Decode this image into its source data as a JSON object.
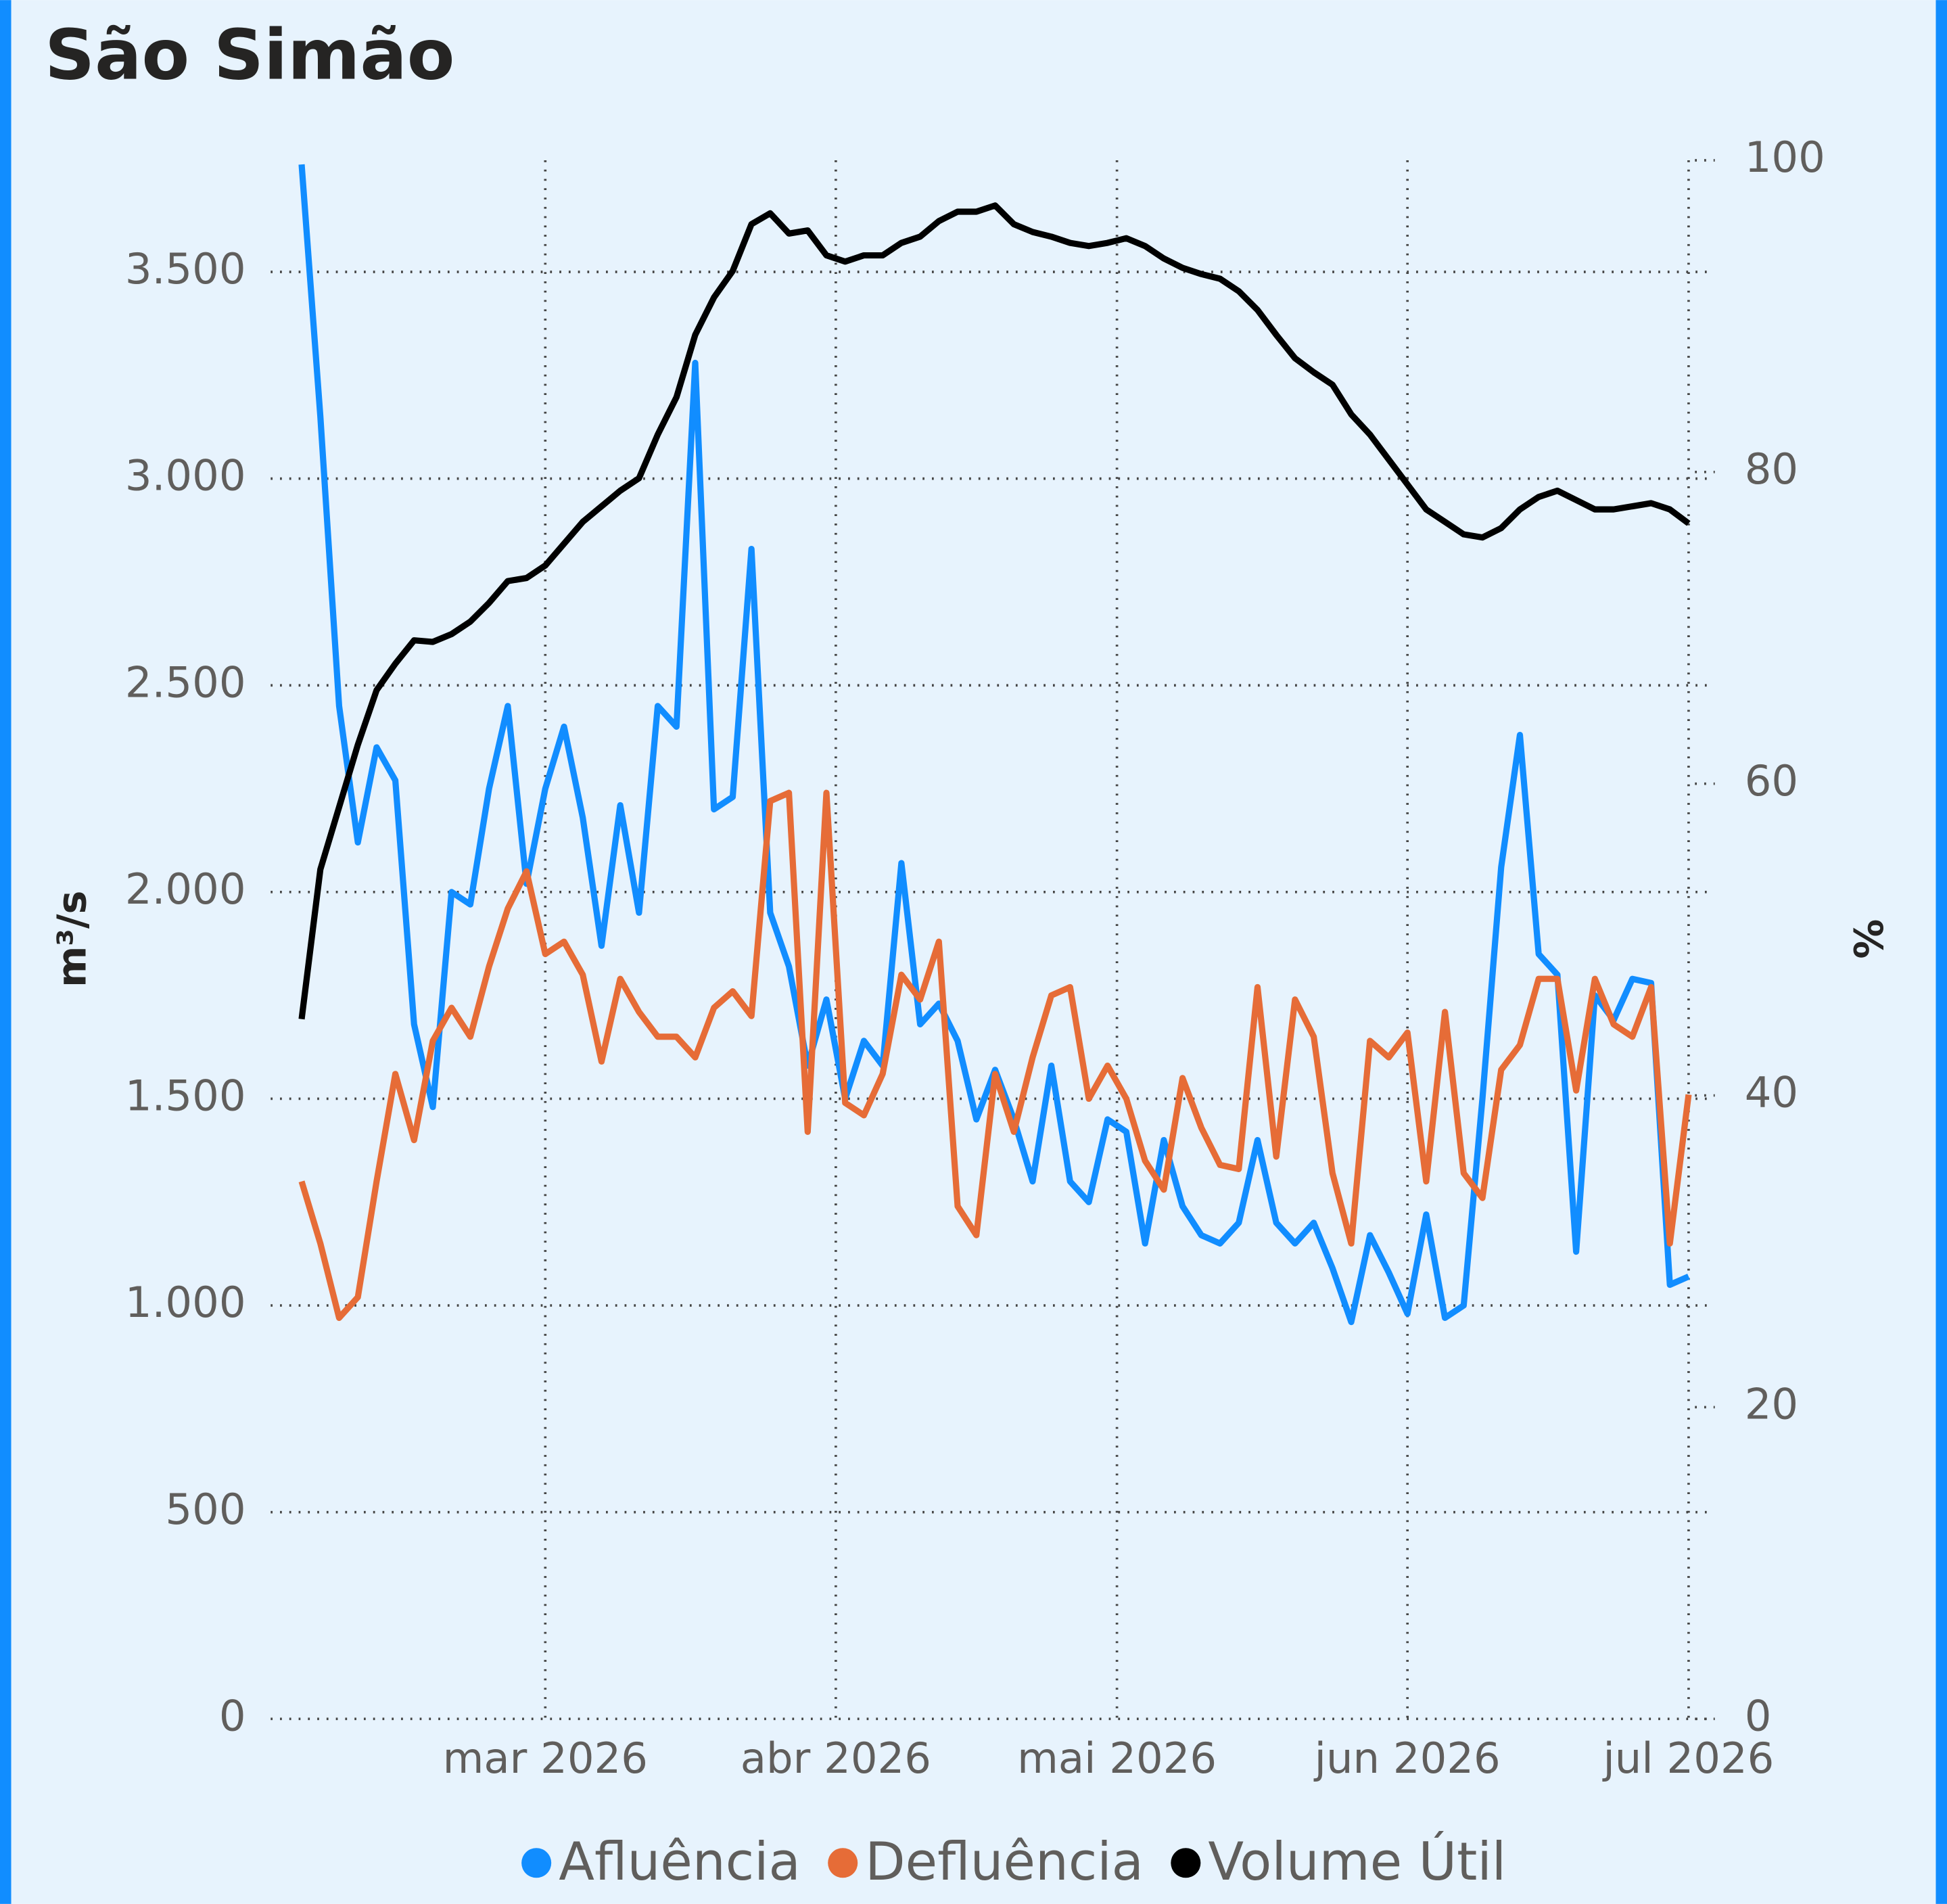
{
  "chart_data": {
    "type": "line",
    "title": "São Simão",
    "y_label": "m³/s",
    "y2_label": "%",
    "x": [
      2,
      4,
      6,
      8,
      10,
      12,
      14,
      16,
      18,
      20,
      22,
      24,
      26,
      28,
      30,
      32,
      34,
      36,
      38,
      40,
      42,
      44,
      46,
      48,
      50,
      52,
      54,
      56,
      58,
      60,
      62,
      64,
      66,
      68,
      70,
      72,
      74,
      76,
      78,
      80,
      82,
      84,
      86,
      88,
      90,
      92,
      94,
      96,
      98,
      100,
      102,
      104,
      106,
      108,
      110,
      112,
      114,
      116,
      118,
      120,
      122,
      124,
      126,
      128,
      130,
      132,
      134,
      136,
      138,
      140,
      142,
      144,
      146,
      148,
      150
    ],
    "xlim": [
      -1.3,
      152
    ],
    "xticks": [
      {
        "value": 28,
        "label": "mar 2026"
      },
      {
        "value": 59,
        "label": "abr 2026"
      },
      {
        "value": 89,
        "label": "mai 2026"
      },
      {
        "value": 120,
        "label": "jun 2026"
      },
      {
        "value": 150,
        "label": "jul 2026"
      }
    ],
    "ylim": [
      0,
      3770
    ],
    "yticks": [
      0,
      500,
      {
        "value": 1000,
        "label": "1.000"
      },
      {
        "value": 1500,
        "label": "1.500"
      },
      {
        "value": 2000,
        "label": "2.000"
      },
      {
        "value": 2500,
        "label": "2.500"
      },
      {
        "value": 3000,
        "label": "3.000"
      },
      {
        "value": 3500,
        "label": "3.500"
      }
    ],
    "y2lim": [
      0,
      100
    ],
    "y2ticks": [
      0,
      20,
      40,
      60,
      80,
      100
    ],
    "grid": true,
    "series": [
      {
        "name": "Afluência",
        "color": "#118dff",
        "values": [
          3760,
          3150,
          2450,
          2120,
          2350,
          2270,
          1680,
          1480,
          2000,
          1970,
          2250,
          2450,
          2020,
          2250,
          2400,
          2180,
          1870,
          2210,
          1950,
          2450,
          2400,
          3280,
          2200,
          2230,
          2830,
          1950,
          1820,
          1580,
          1740,
          1500,
          1640,
          1580,
          2070,
          1680,
          1730,
          1640,
          1450,
          1570,
          1450,
          1300,
          1580,
          1300,
          1250,
          1450,
          1420,
          1150,
          1400,
          1240,
          1170,
          1150,
          1200,
          1400,
          1200,
          1150,
          1200,
          1090,
          960,
          1170,
          1080,
          980,
          1220,
          970,
          1000,
          1500,
          2060,
          2380,
          1850,
          1800,
          1130,
          1750,
          1690,
          1790,
          1780,
          1050,
          1070
        ]
      },
      {
        "name": "Defluência",
        "color": "#e66c37",
        "values": [
          1300,
          1150,
          970,
          1020,
          1300,
          1560,
          1400,
          1640,
          1720,
          1650,
          1820,
          1960,
          2050,
          1850,
          1880,
          1800,
          1590,
          1790,
          1710,
          1650,
          1650,
          1600,
          1720,
          1760,
          1700,
          2220,
          2240,
          1420,
          2240,
          1490,
          1460,
          1560,
          1800,
          1740,
          1880,
          1240,
          1170,
          1560,
          1420,
          1600,
          1750,
          1770,
          1500,
          1580,
          1500,
          1350,
          1280,
          1550,
          1430,
          1340,
          1330,
          1770,
          1360,
          1740,
          1650,
          1320,
          1150,
          1640,
          1600,
          1660,
          1300,
          1710,
          1320,
          1260,
          1570,
          1630,
          1790,
          1790,
          1520,
          1790,
          1680,
          1650,
          1770,
          1150,
          1510
        ]
      },
      {
        "name": "Volume Útil",
        "color": "#000000",
        "axis": "y2",
        "values": [
          44.9,
          54.5,
          58.5,
          62.5,
          66,
          67.7,
          69.2,
          69.1,
          69.6,
          70.4,
          71.6,
          73,
          73.2,
          74,
          75.4,
          76.8,
          77.8,
          78.8,
          79.6,
          82.4,
          84.8,
          88.8,
          91.2,
          92.9,
          95.9,
          96.6,
          95.3,
          95.5,
          93.9,
          93.5,
          93.9,
          93.9,
          94.7,
          95.1,
          96.1,
          96.7,
          96.7,
          97.1,
          95.9,
          95.4,
          95.1,
          94.7,
          94.5,
          94.7,
          95,
          94.5,
          93.7,
          93.1,
          92.7,
          92.4,
          91.6,
          90.4,
          88.8,
          87.3,
          86.4,
          85.6,
          83.7,
          82.4,
          80.8,
          79.2,
          77.6,
          76.8,
          76,
          75.8,
          76.4,
          77.6,
          78.4,
          78.8,
          78.2,
          77.6,
          77.6,
          77.8,
          78,
          77.6,
          76.7
        ]
      }
    ]
  }
}
